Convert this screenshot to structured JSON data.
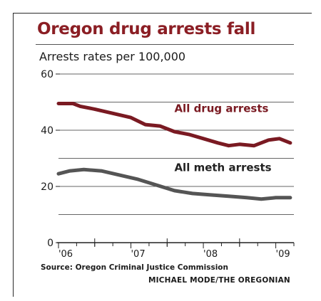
{
  "header": {
    "title": "Oregon drug arrests fall",
    "subtitle": "Arrests rates per 100,000"
  },
  "footer": {
    "source": "Source: Oregon Criminal Justice Commission",
    "credit": "MICHAEL MODE/THE OREGONIAN"
  },
  "colors": {
    "title": "#8b1e24",
    "drug_series": "#7a1a22",
    "meth_series": "#555555",
    "grid": "#666666",
    "text": "#1b1b1b"
  },
  "chart_data": {
    "type": "line",
    "title": "Oregon drug arrests fall",
    "ylabel": "Arrests rates per 100,000",
    "ylim": [
      0,
      60
    ],
    "yticks": [
      {
        "value": 0,
        "label": "0"
      },
      {
        "value": 20,
        "label": "20"
      },
      {
        "value": 40,
        "label": "40"
      },
      {
        "value": 60,
        "label": "60"
      }
    ],
    "xlim": [
      2006.0,
      2009.25
    ],
    "xticks": [
      {
        "value": 2006.0,
        "label": "'06"
      },
      {
        "value": 2007.0,
        "label": "'07"
      },
      {
        "value": 2008.0,
        "label": "'08"
      },
      {
        "value": 2009.0,
        "label": "'09"
      }
    ],
    "grid": true,
    "series": [
      {
        "name": "All drug arrests",
        "x": [
          2006.0,
          2006.2,
          2006.3,
          2006.5,
          2006.75,
          2007.0,
          2007.2,
          2007.4,
          2007.6,
          2007.8,
          2008.0,
          2008.2,
          2008.35,
          2008.5,
          2008.7,
          2008.9,
          2009.05,
          2009.2
        ],
        "values": [
          49.5,
          49.5,
          48.5,
          47.5,
          46,
          44.5,
          42,
          41.5,
          39.5,
          38.5,
          37,
          35.5,
          34.5,
          35,
          34.5,
          36.5,
          37,
          35.5
        ]
      },
      {
        "name": "All meth arrests",
        "x": [
          2006.0,
          2006.15,
          2006.35,
          2006.6,
          2006.85,
          2007.1,
          2007.35,
          2007.6,
          2007.85,
          2008.1,
          2008.35,
          2008.6,
          2008.8,
          2009.0,
          2009.2
        ],
        "values": [
          24.5,
          25.5,
          26,
          25.5,
          24,
          22.5,
          20.5,
          18.5,
          17.5,
          17,
          16.5,
          16,
          15.5,
          16,
          16
        ]
      }
    ]
  }
}
